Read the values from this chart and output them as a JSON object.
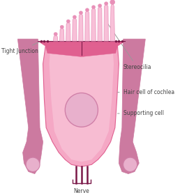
{
  "bg_color": "#ffffff",
  "cell_body_color": "#f5a8c5",
  "cell_body_light": "#fad0e0",
  "cell_body_dark": "#e06090",
  "supporting_color": "#cc7aa0",
  "supporting_light": "#e09ab8",
  "nucleus_color": "#e8b0cc",
  "nucleus_border": "#d080a8",
  "stereocilia_fill": "#f8c0d8",
  "stereocilia_edge": "#e890b8",
  "nerve_color": "#7a1848",
  "dot_color": "#7a1848",
  "label_color": "#444444",
  "line_color": "#999999",
  "labels": {
    "tight_junction": "Tight Junction",
    "stereocilia": "Stereocilia",
    "hair_cell": "Hair cell of cochlea",
    "supporting_cell": "Supporting cell",
    "nerve": "Nerve"
  },
  "figsize": [
    2.58,
    2.8
  ],
  "dpi": 100
}
